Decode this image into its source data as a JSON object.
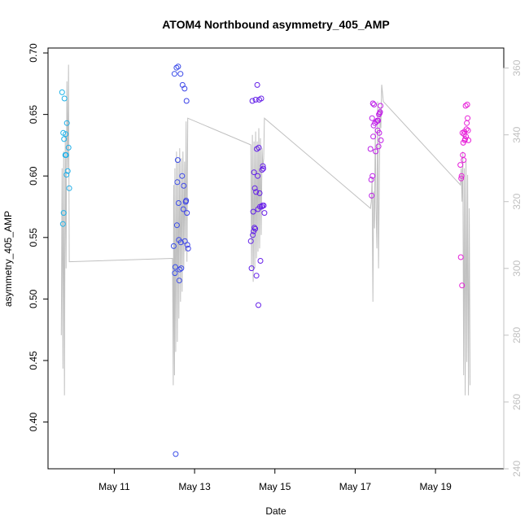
{
  "chart_data": {
    "type": "scatter",
    "title": "ATOM4 Northbound asymmetry_405_AMP",
    "xlabel": "Date",
    "ylabel": "asymmetry_405_AMP",
    "x_unit": "day of May",
    "xlim": [
      9.35,
      20.7
    ],
    "ylim": [
      0.362,
      0.704
    ],
    "y_ticks": [
      "0.40",
      "0.45",
      "0.50",
      "0.55",
      "0.60",
      "0.65",
      "0.70"
    ],
    "y_tick_values": [
      0.4,
      0.45,
      0.5,
      0.55,
      0.6,
      0.65,
      0.7
    ],
    "x_ticks": [
      "May 11",
      "May 13",
      "May 15",
      "May 17",
      "May 19"
    ],
    "x_tick_values": [
      11,
      13,
      15,
      17,
      19
    ],
    "y2lim": [
      240,
      366
    ],
    "y2_ticks": [
      "240",
      "260",
      "280",
      "300",
      "320",
      "340",
      "360"
    ],
    "y2_tick_values": [
      240,
      260,
      280,
      300,
      320,
      340,
      360
    ],
    "grid": false,
    "legend": "none",
    "colors": {
      "axis": "#000000",
      "secondary_axis": "#c0c0c0",
      "line": "#c0c0c0",
      "point_gradient": [
        "#1fb4e8",
        "#2d6ae8",
        "#4a1fe8",
        "#8a1fe8",
        "#c81fe8",
        "#e81fd8"
      ]
    },
    "points": [
      {
        "x": 9.7,
        "y": 0.668
      },
      {
        "x": 9.73,
        "y": 0.635
      },
      {
        "x": 9.75,
        "y": 0.63
      },
      {
        "x": 9.72,
        "y": 0.561
      },
      {
        "x": 9.74,
        "y": 0.57
      },
      {
        "x": 9.76,
        "y": 0.663
      },
      {
        "x": 9.78,
        "y": 0.617
      },
      {
        "x": 9.79,
        "y": 0.634
      },
      {
        "x": 9.8,
        "y": 0.617
      },
      {
        "x": 9.81,
        "y": 0.601
      },
      {
        "x": 9.82,
        "y": 0.643
      },
      {
        "x": 9.84,
        "y": 0.604
      },
      {
        "x": 9.86,
        "y": 0.623
      },
      {
        "x": 9.88,
        "y": 0.59
      },
      {
        "x": 12.48,
        "y": 0.543
      },
      {
        "x": 12.5,
        "y": 0.683
      },
      {
        "x": 12.51,
        "y": 0.521
      },
      {
        "x": 12.52,
        "y": 0.526
      },
      {
        "x": 12.53,
        "y": 0.374
      },
      {
        "x": 12.55,
        "y": 0.688
      },
      {
        "x": 12.56,
        "y": 0.56
      },
      {
        "x": 12.57,
        "y": 0.595
      },
      {
        "x": 12.58,
        "y": 0.613
      },
      {
        "x": 12.59,
        "y": 0.689
      },
      {
        "x": 12.6,
        "y": 0.578
      },
      {
        "x": 12.61,
        "y": 0.548
      },
      {
        "x": 12.62,
        "y": 0.515
      },
      {
        "x": 12.63,
        "y": 0.524
      },
      {
        "x": 12.65,
        "y": 0.683
      },
      {
        "x": 12.66,
        "y": 0.546
      },
      {
        "x": 12.67,
        "y": 0.525
      },
      {
        "x": 12.69,
        "y": 0.6
      },
      {
        "x": 12.7,
        "y": 0.674
      },
      {
        "x": 12.72,
        "y": 0.573
      },
      {
        "x": 12.73,
        "y": 0.592
      },
      {
        "x": 12.75,
        "y": 0.671
      },
      {
        "x": 12.76,
        "y": 0.547
      },
      {
        "x": 12.78,
        "y": 0.579
      },
      {
        "x": 12.79,
        "y": 0.58
      },
      {
        "x": 12.8,
        "y": 0.661
      },
      {
        "x": 12.81,
        "y": 0.57
      },
      {
        "x": 12.82,
        "y": 0.544
      },
      {
        "x": 12.84,
        "y": 0.541
      },
      {
        "x": 14.4,
        "y": 0.547
      },
      {
        "x": 14.42,
        "y": 0.525
      },
      {
        "x": 14.44,
        "y": 0.661
      },
      {
        "x": 14.45,
        "y": 0.552
      },
      {
        "x": 14.46,
        "y": 0.571
      },
      {
        "x": 14.47,
        "y": 0.555
      },
      {
        "x": 14.48,
        "y": 0.603
      },
      {
        "x": 14.49,
        "y": 0.558
      },
      {
        "x": 14.5,
        "y": 0.59
      },
      {
        "x": 14.51,
        "y": 0.557
      },
      {
        "x": 14.52,
        "y": 0.662
      },
      {
        "x": 14.53,
        "y": 0.587
      },
      {
        "x": 14.54,
        "y": 0.519
      },
      {
        "x": 14.55,
        "y": 0.622
      },
      {
        "x": 14.56,
        "y": 0.674
      },
      {
        "x": 14.57,
        "y": 0.6
      },
      {
        "x": 14.58,
        "y": 0.573
      },
      {
        "x": 14.59,
        "y": 0.495
      },
      {
        "x": 14.6,
        "y": 0.623
      },
      {
        "x": 14.61,
        "y": 0.662
      },
      {
        "x": 14.62,
        "y": 0.586
      },
      {
        "x": 14.63,
        "y": 0.575
      },
      {
        "x": 14.64,
        "y": 0.531
      },
      {
        "x": 14.66,
        "y": 0.663
      },
      {
        "x": 14.67,
        "y": 0.575
      },
      {
        "x": 14.68,
        "y": 0.605
      },
      {
        "x": 14.69,
        "y": 0.576
      },
      {
        "x": 14.7,
        "y": 0.608
      },
      {
        "x": 14.71,
        "y": 0.606
      },
      {
        "x": 14.72,
        "y": 0.576
      },
      {
        "x": 14.74,
        "y": 0.57
      },
      {
        "x": 17.38,
        "y": 0.622
      },
      {
        "x": 17.4,
        "y": 0.597
      },
      {
        "x": 17.41,
        "y": 0.584
      },
      {
        "x": 17.42,
        "y": 0.647
      },
      {
        "x": 17.43,
        "y": 0.6
      },
      {
        "x": 17.44,
        "y": 0.659
      },
      {
        "x": 17.45,
        "y": 0.632
      },
      {
        "x": 17.46,
        "y": 0.641
      },
      {
        "x": 17.47,
        "y": 0.658
      },
      {
        "x": 17.49,
        "y": 0.643
      },
      {
        "x": 17.51,
        "y": 0.62
      },
      {
        "x": 17.53,
        "y": 0.644
      },
      {
        "x": 17.55,
        "y": 0.645
      },
      {
        "x": 17.56,
        "y": 0.637
      },
      {
        "x": 17.57,
        "y": 0.645
      },
      {
        "x": 17.58,
        "y": 0.624
      },
      {
        "x": 17.59,
        "y": 0.65
      },
      {
        "x": 17.6,
        "y": 0.635
      },
      {
        "x": 17.61,
        "y": 0.651
      },
      {
        "x": 17.63,
        "y": 0.657
      },
      {
        "x": 17.64,
        "y": 0.629
      },
      {
        "x": 17.62,
        "y": 0.652
      },
      {
        "x": 19.62,
        "y": 0.609
      },
      {
        "x": 19.63,
        "y": 0.534
      },
      {
        "x": 19.64,
        "y": 0.598
      },
      {
        "x": 19.65,
        "y": 0.6
      },
      {
        "x": 19.66,
        "y": 0.511
      },
      {
        "x": 19.67,
        "y": 0.635
      },
      {
        "x": 19.68,
        "y": 0.617
      },
      {
        "x": 19.69,
        "y": 0.627
      },
      {
        "x": 19.7,
        "y": 0.613
      },
      {
        "x": 19.71,
        "y": 0.634
      },
      {
        "x": 19.72,
        "y": 0.636
      },
      {
        "x": 19.73,
        "y": 0.629
      },
      {
        "x": 19.74,
        "y": 0.63
      },
      {
        "x": 19.75,
        "y": 0.657
      },
      {
        "x": 19.76,
        "y": 0.632
      },
      {
        "x": 19.77,
        "y": 0.638
      },
      {
        "x": 19.78,
        "y": 0.643
      },
      {
        "x": 19.79,
        "y": 0.658
      },
      {
        "x": 19.8,
        "y": 0.647
      },
      {
        "x": 19.81,
        "y": 0.637
      },
      {
        "x": 19.82,
        "y": 0.629
      }
    ],
    "line_series": [
      {
        "x": 9.68,
        "y2": 280
      },
      {
        "x": 9.7,
        "y2": 330
      },
      {
        "x": 9.72,
        "y2": 270
      },
      {
        "x": 9.74,
        "y2": 335
      },
      {
        "x": 9.76,
        "y2": 262
      },
      {
        "x": 9.78,
        "y2": 340
      },
      {
        "x": 9.8,
        "y2": 300
      },
      {
        "x": 9.82,
        "y2": 356
      },
      {
        "x": 9.84,
        "y2": 330
      },
      {
        "x": 9.86,
        "y2": 361
      },
      {
        "x": 9.88,
        "y2": 302
      },
      {
        "x": 12.45,
        "y2": 303
      },
      {
        "x": 12.47,
        "y2": 265
      },
      {
        "x": 12.48,
        "y2": 325
      },
      {
        "x": 12.5,
        "y2": 268
      },
      {
        "x": 12.51,
        "y2": 330
      },
      {
        "x": 12.53,
        "y2": 275
      },
      {
        "x": 12.55,
        "y2": 335
      },
      {
        "x": 12.57,
        "y2": 278
      },
      {
        "x": 12.59,
        "y2": 332
      },
      {
        "x": 12.61,
        "y2": 285
      },
      {
        "x": 12.63,
        "y2": 336
      },
      {
        "x": 12.65,
        "y2": 290
      },
      {
        "x": 12.67,
        "y2": 333
      },
      {
        "x": 12.69,
        "y2": 293
      },
      {
        "x": 12.71,
        "y2": 335
      },
      {
        "x": 12.73,
        "y2": 300
      },
      {
        "x": 12.75,
        "y2": 332
      },
      {
        "x": 12.77,
        "y2": 305
      },
      {
        "x": 12.79,
        "y2": 344
      },
      {
        "x": 12.81,
        "y2": 302
      },
      {
        "x": 12.83,
        "y2": 345
      },
      {
        "x": 14.4,
        "y2": 337
      },
      {
        "x": 14.42,
        "y2": 300
      },
      {
        "x": 14.44,
        "y2": 340
      },
      {
        "x": 14.46,
        "y2": 296
      },
      {
        "x": 14.48,
        "y2": 338
      },
      {
        "x": 14.5,
        "y2": 300
      },
      {
        "x": 14.52,
        "y2": 341
      },
      {
        "x": 14.54,
        "y2": 303
      },
      {
        "x": 14.56,
        "y2": 338
      },
      {
        "x": 14.58,
        "y2": 305
      },
      {
        "x": 14.6,
        "y2": 342
      },
      {
        "x": 14.62,
        "y2": 306
      },
      {
        "x": 14.64,
        "y2": 339
      },
      {
        "x": 14.66,
        "y2": 310
      },
      {
        "x": 14.68,
        "y2": 336
      },
      {
        "x": 14.7,
        "y2": 330
      },
      {
        "x": 14.72,
        "y2": 333
      },
      {
        "x": 14.74,
        "y2": 345
      },
      {
        "x": 17.38,
        "y2": 318
      },
      {
        "x": 17.4,
        "y2": 320
      },
      {
        "x": 17.42,
        "y2": 327
      },
      {
        "x": 17.44,
        "y2": 290
      },
      {
        "x": 17.46,
        "y2": 323
      },
      {
        "x": 17.48,
        "y2": 312
      },
      {
        "x": 17.5,
        "y2": 342
      },
      {
        "x": 17.52,
        "y2": 318
      },
      {
        "x": 17.54,
        "y2": 306
      },
      {
        "x": 17.56,
        "y2": 350
      },
      {
        "x": 17.58,
        "y2": 300
      },
      {
        "x": 17.6,
        "y2": 325
      },
      {
        "x": 17.62,
        "y2": 348
      },
      {
        "x": 17.64,
        "y2": 342
      },
      {
        "x": 17.66,
        "y2": 355
      },
      {
        "x": 17.7,
        "y2": 350
      },
      {
        "x": 19.62,
        "y2": 325
      },
      {
        "x": 19.64,
        "y2": 330
      },
      {
        "x": 19.66,
        "y2": 320
      },
      {
        "x": 19.68,
        "y2": 335
      },
      {
        "x": 19.7,
        "y2": 268
      },
      {
        "x": 19.72,
        "y2": 330
      },
      {
        "x": 19.74,
        "y2": 262
      },
      {
        "x": 19.76,
        "y2": 332
      },
      {
        "x": 19.78,
        "y2": 272
      },
      {
        "x": 19.8,
        "y2": 328
      },
      {
        "x": 19.82,
        "y2": 262
      },
      {
        "x": 19.84,
        "y2": 318
      },
      {
        "x": 19.86,
        "y2": 265
      }
    ]
  }
}
